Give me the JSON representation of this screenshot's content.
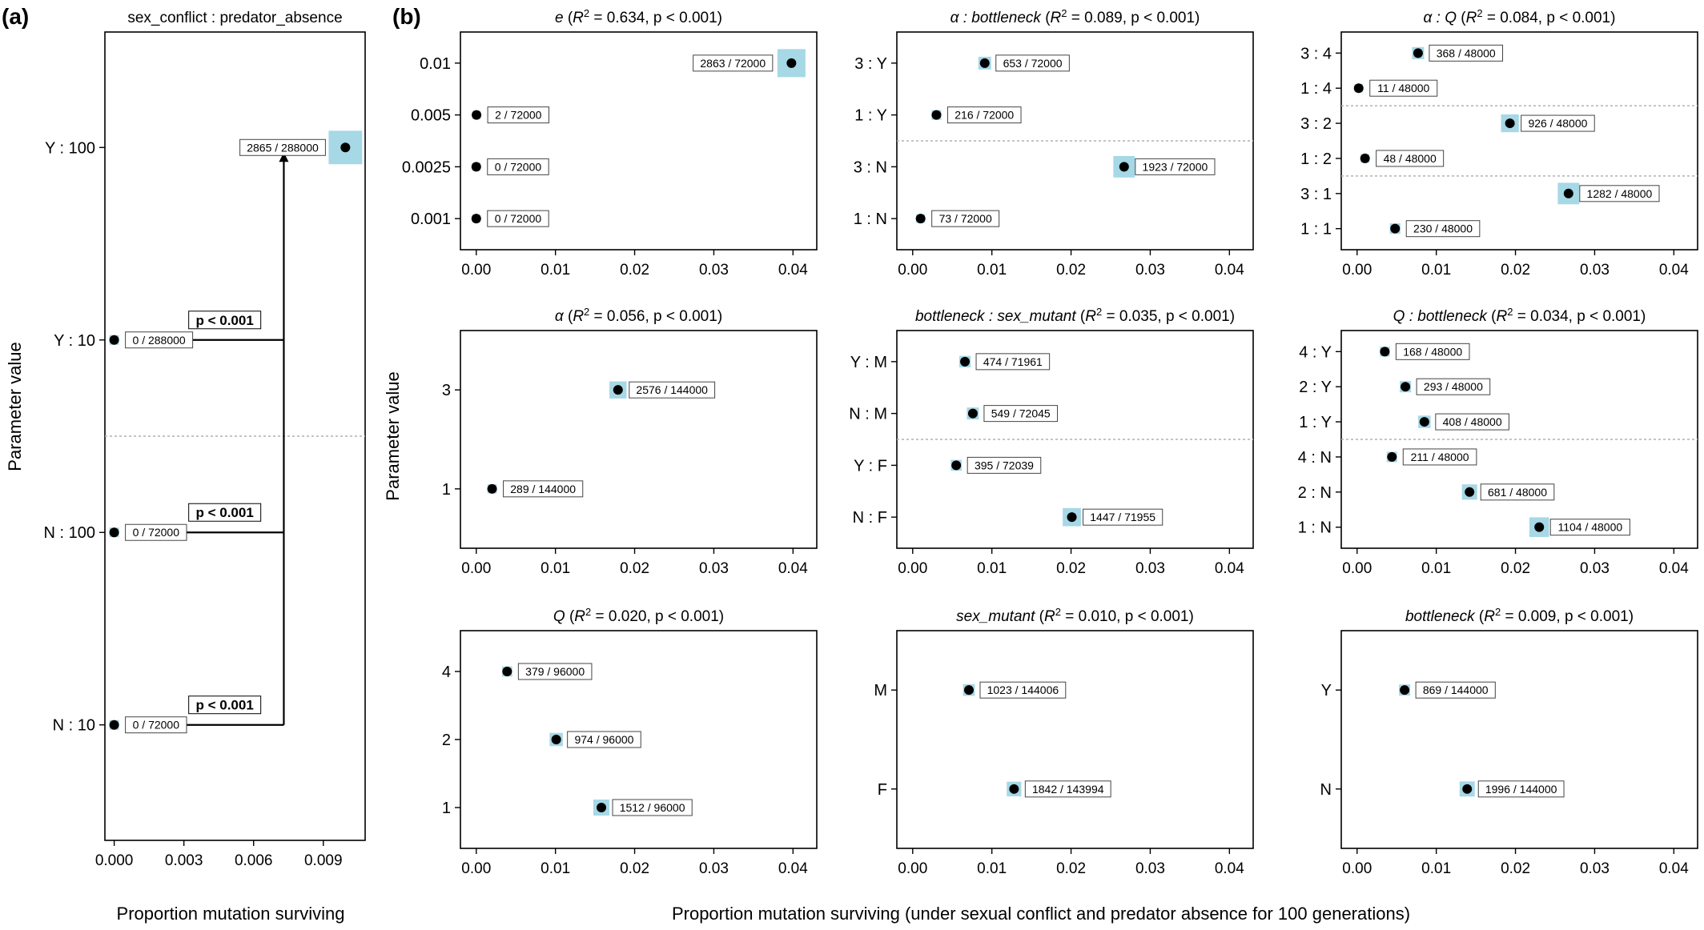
{
  "figure": {
    "panel_a_letter": "(a)",
    "panel_b_letter": "(b)",
    "ylabel": "Parameter value",
    "xlabel_a": "Proportion mutation surviving",
    "xlabel_b": "Proportion mutation surviving (under sexual conflict and predator absence for 100 generations)"
  },
  "colors": {
    "ci_box": "#a6d8e6",
    "point": "#000000",
    "frame": "#000000",
    "divider": "#b0b0b0"
  },
  "chart_data": [
    {
      "type": "scatter",
      "panel": "a",
      "title": "sex_conflict : predator_absence",
      "xlabel": "Proportion mutation surviving",
      "ylabel": "Parameter value",
      "xlim": [
        -0.0004,
        0.0108
      ],
      "xticks": [
        "0.000",
        "0.003",
        "0.006",
        "0.009"
      ],
      "xtick_values": [
        0,
        0.003,
        0.006,
        0.009
      ],
      "categories": [
        "Y : 100",
        "Y : 10",
        "N : 100",
        "N : 10"
      ],
      "values": [
        0.00995,
        0.0,
        0.0,
        0.0
      ],
      "labels": [
        "2865 / 288000",
        "0 / 288000",
        "0 / 72000",
        "0 / 72000"
      ],
      "divider_after": 1,
      "comparisons": [
        {
          "from": "Y : 100",
          "to": "Y : 10",
          "label": "p < 0.001"
        },
        {
          "from": "Y : 100",
          "to": "N : 100",
          "label": "p < 0.001"
        },
        {
          "from": "Y : 100",
          "to": "N : 10",
          "label": "p < 0.001"
        }
      ]
    },
    {
      "type": "scatter",
      "panel": "b1",
      "title_param": "e",
      "title_r2": "0.634",
      "title_p": "p < 0.001",
      "xlim": [
        -0.002,
        0.043
      ],
      "categories": [
        "0.01",
        "0.005",
        "0.0025",
        "0.001"
      ],
      "values": [
        0.0398,
        3e-05,
        0.0,
        0.0
      ],
      "labels": [
        "2863 / 72000",
        "2 / 72000",
        "0 / 72000",
        "0 / 72000"
      ],
      "divider_after": null
    },
    {
      "type": "scatter",
      "panel": "b2",
      "title_param": "α : bottleneck",
      "title_r2": "0.089",
      "title_p": "p < 0.001",
      "xlim": [
        -0.002,
        0.043
      ],
      "categories": [
        "3 : Y",
        "1 : Y",
        "3 : N",
        "1 : N"
      ],
      "values": [
        0.0091,
        0.003,
        0.0267,
        0.001
      ],
      "labels": [
        "653 / 72000",
        "216 / 72000",
        "1923 / 72000",
        "73 / 72000"
      ],
      "divider_after": 1
    },
    {
      "type": "scatter",
      "panel": "b3",
      "title_param": "α : Q",
      "title_r2": "0.084",
      "title_p": "p < 0.001",
      "xlim": [
        -0.002,
        0.043
      ],
      "categories": [
        "3 : 4",
        "1 : 4",
        "3 : 2",
        "1 : 2",
        "3 : 1",
        "1 : 1"
      ],
      "values": [
        0.0077,
        0.0002,
        0.0193,
        0.001,
        0.0267,
        0.0048
      ],
      "labels": [
        "368 / 48000",
        "11 / 48000",
        "926 / 48000",
        "48 / 48000",
        "1282 / 48000",
        "230 / 48000"
      ],
      "divider_after": [
        1,
        3
      ]
    },
    {
      "type": "scatter",
      "panel": "b4",
      "title_param": "α",
      "title_r2": "0.056",
      "title_p": "p < 0.001",
      "xlim": [
        -0.002,
        0.043
      ],
      "categories": [
        "3",
        "1"
      ],
      "values": [
        0.0179,
        0.002
      ],
      "labels": [
        "2576 / 144000",
        "289 / 144000"
      ],
      "divider_after": null
    },
    {
      "type": "scatter",
      "panel": "b5",
      "title_param": "bottleneck : sex_mutant",
      "title_r2": "0.035",
      "title_p": "p < 0.001",
      "xlim": [
        -0.002,
        0.043
      ],
      "categories": [
        "Y : M",
        "N : M",
        "Y : F",
        "N : F"
      ],
      "values": [
        0.0066,
        0.0076,
        0.0055,
        0.0201
      ],
      "labels": [
        "474 / 71961",
        "549 / 72045",
        "395 / 72039",
        "1447 / 71955"
      ],
      "divider_after": 1
    },
    {
      "type": "scatter",
      "panel": "b6",
      "title_param": "Q : bottleneck",
      "title_r2": "0.034",
      "title_p": "p < 0.001",
      "xlim": [
        -0.002,
        0.043
      ],
      "categories": [
        "4 : Y",
        "2 : Y",
        "1 : Y",
        "4 : N",
        "2 : N",
        "1 : N"
      ],
      "values": [
        0.0035,
        0.0061,
        0.0085,
        0.0044,
        0.0142,
        0.023
      ],
      "labels": [
        "168 / 48000",
        "293 / 48000",
        "408 / 48000",
        "211 / 48000",
        "681 / 48000",
        "1104 / 48000"
      ],
      "divider_after": 2
    },
    {
      "type": "scatter",
      "panel": "b7",
      "title_param": "Q",
      "title_r2": "0.020",
      "title_p": "p < 0.001",
      "xlim": [
        -0.002,
        0.043
      ],
      "categories": [
        "4",
        "2",
        "1"
      ],
      "values": [
        0.0039,
        0.0101,
        0.0158
      ],
      "labels": [
        "379 / 96000",
        "974 / 96000",
        "1512 / 96000"
      ],
      "divider_after": null
    },
    {
      "type": "scatter",
      "panel": "b8",
      "title_param": "sex_mutant",
      "title_r2": "0.010",
      "title_p": "p < 0.001",
      "xlim": [
        -0.002,
        0.043
      ],
      "categories": [
        "M",
        "F"
      ],
      "values": [
        0.0071,
        0.0128
      ],
      "labels": [
        "1023 / 144006",
        "1842 / 143994"
      ],
      "divider_after": null
    },
    {
      "type": "scatter",
      "panel": "b9",
      "title_param": "bottleneck",
      "title_r2": "0.009",
      "title_p": "p < 0.001",
      "xlim": [
        -0.002,
        0.043
      ],
      "categories": [
        "Y",
        "N"
      ],
      "values": [
        0.006,
        0.0139
      ],
      "labels": [
        "869 / 144000",
        "1996 / 144000"
      ],
      "divider_after": null
    }
  ],
  "b_xticks": [
    "0.00",
    "0.01",
    "0.02",
    "0.03",
    "0.04"
  ],
  "b_xtick_values": [
    0,
    0.01,
    0.02,
    0.03,
    0.04
  ]
}
